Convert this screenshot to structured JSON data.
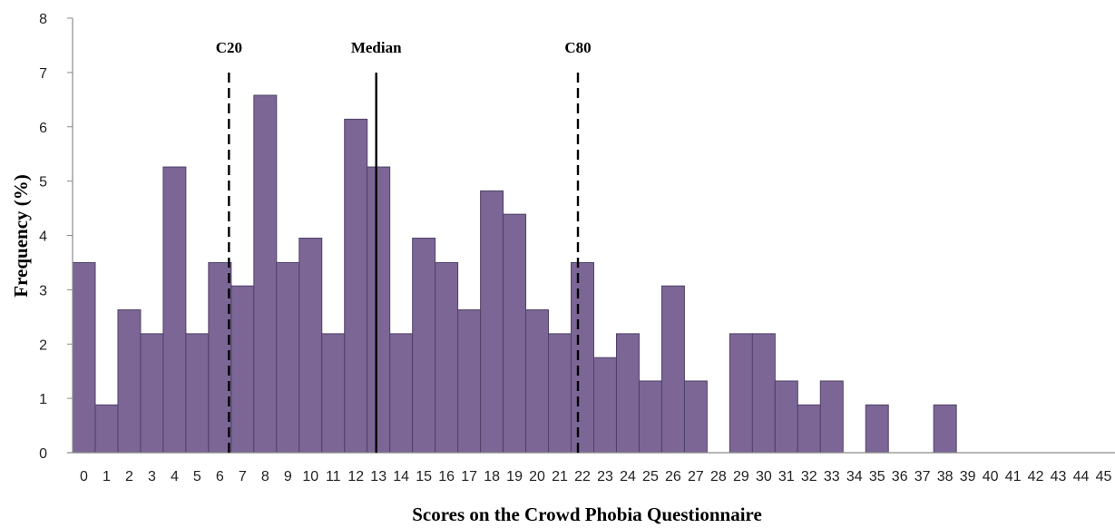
{
  "chart_data": {
    "type": "bar",
    "title": "",
    "xlabel": "Scores on the Crowd Phobia Questionnaire",
    "ylabel": "Frequency (%)",
    "ylim": [
      0,
      8
    ],
    "yticks": [
      0,
      1,
      2,
      3,
      4,
      5,
      6,
      7,
      8
    ],
    "grid": false,
    "legend": "none",
    "colors": {
      "bar": "#7b6696",
      "bar_edge": "#4f4266",
      "axis": "#8a8a8a",
      "ref_line": "#000000"
    },
    "categories": [
      "0",
      "1",
      "2",
      "3",
      "4",
      "5",
      "6",
      "7",
      "8",
      "9",
      "10",
      "11",
      "12",
      "13",
      "14",
      "15",
      "16",
      "17",
      "18",
      "19",
      "20",
      "21",
      "22",
      "23",
      "24",
      "25",
      "26",
      "27",
      "28",
      "29",
      "30",
      "31",
      "32",
      "33",
      "34",
      "35",
      "36",
      "37",
      "38",
      "39",
      "40",
      "41",
      "42",
      "43",
      "44",
      "45"
    ],
    "values": [
      3.5,
      0.88,
      2.63,
      2.19,
      5.26,
      2.19,
      3.5,
      3.07,
      6.58,
      3.5,
      3.95,
      2.19,
      6.14,
      5.26,
      2.19,
      3.95,
      3.5,
      2.63,
      4.82,
      4.39,
      2.63,
      2.19,
      3.5,
      1.75,
      2.19,
      1.32,
      3.07,
      1.32,
      0,
      2.19,
      2.19,
      1.32,
      0.88,
      1.32,
      0,
      0.88,
      0,
      0,
      0.88,
      0,
      0,
      0,
      0,
      0,
      0,
      0
    ],
    "reference_lines": [
      {
        "label": "C20",
        "x": 6.4,
        "style": "dashed"
      },
      {
        "label": "Median",
        "x": 12.9,
        "style": "solid"
      },
      {
        "label": "C80",
        "x": 21.8,
        "style": "dashed"
      }
    ]
  }
}
